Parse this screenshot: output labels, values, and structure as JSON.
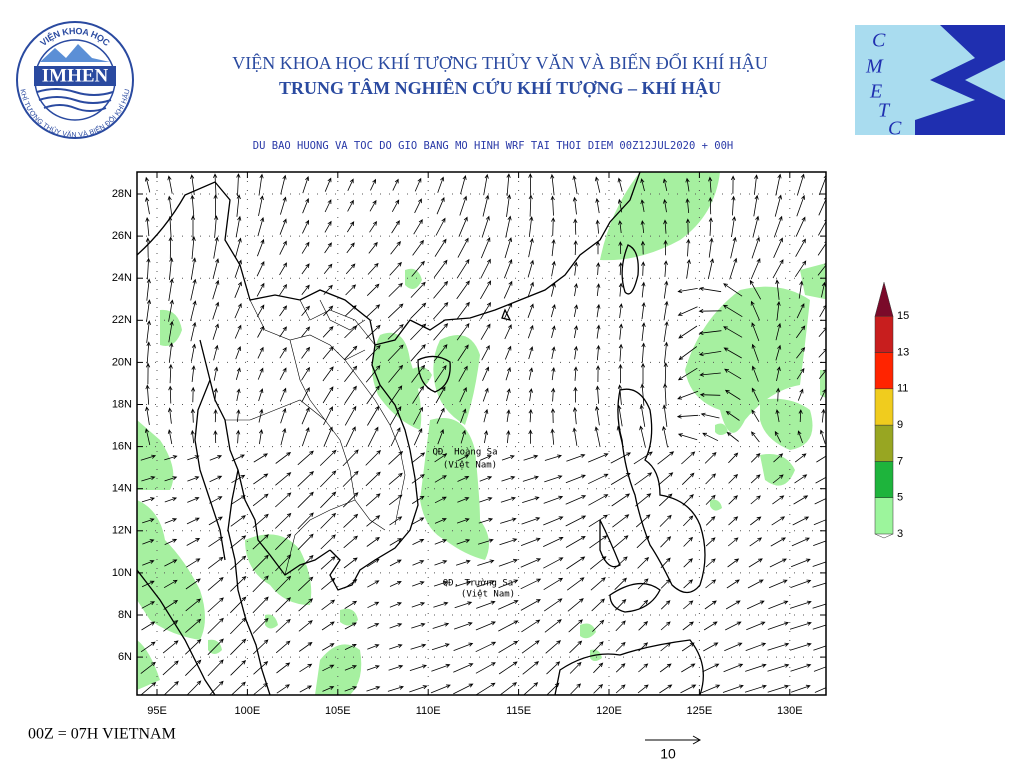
{
  "header": {
    "line1": "VIỆN KHOA HỌC KHÍ TƯỢNG THỦY VĂN VÀ BIẾN ĐỔI KHÍ HẬU",
    "line2": "TRUNG TÂM NGHIÊN CỨU KHÍ TƯỢNG – KHÍ HẬU",
    "subtitle": "DU BAO HUONG VA TOC DO GIO BANG MO HINH WRF TAI THOI DIEM  00Z12JUL2020 + 00H"
  },
  "logos": {
    "left": {
      "name": "IMHEN",
      "ring_top": "VIỆN KHOA HỌC",
      "ring_bottom": "KHÍ TƯỢNG THỦY VĂN VÀ BIẾN ĐỔI KHÍ HẬU"
    },
    "right": {
      "letters": [
        "C",
        "M",
        "E",
        "T",
        "C"
      ]
    }
  },
  "map": {
    "lat_labels": [
      "28N",
      "26N",
      "24N",
      "22N",
      "20N",
      "18N",
      "16N",
      "14N",
      "12N",
      "10N",
      "8N",
      "6N"
    ],
    "lon_labels": [
      "95E",
      "100E",
      "105E",
      "110E",
      "115E",
      "120E",
      "125E",
      "130E"
    ],
    "annotations": [
      {
        "name": "QĐ. Hoàng Sa",
        "country": "(Việt Nam)"
      },
      {
        "name": "QĐ. Trường Sa",
        "country": "(Việt Nam)"
      }
    ]
  },
  "legend": {
    "levels": [
      3,
      5,
      7,
      9,
      11,
      13,
      15
    ],
    "colors": [
      "#9cf59c",
      "#1eb43c",
      "#98a622",
      "#f0cc1e",
      "#ff2400",
      "#c81e1e",
      "#7a0a2a"
    ]
  },
  "footer": {
    "note": "00Z = 07H VIETNAM",
    "reference_vector": "10"
  }
}
